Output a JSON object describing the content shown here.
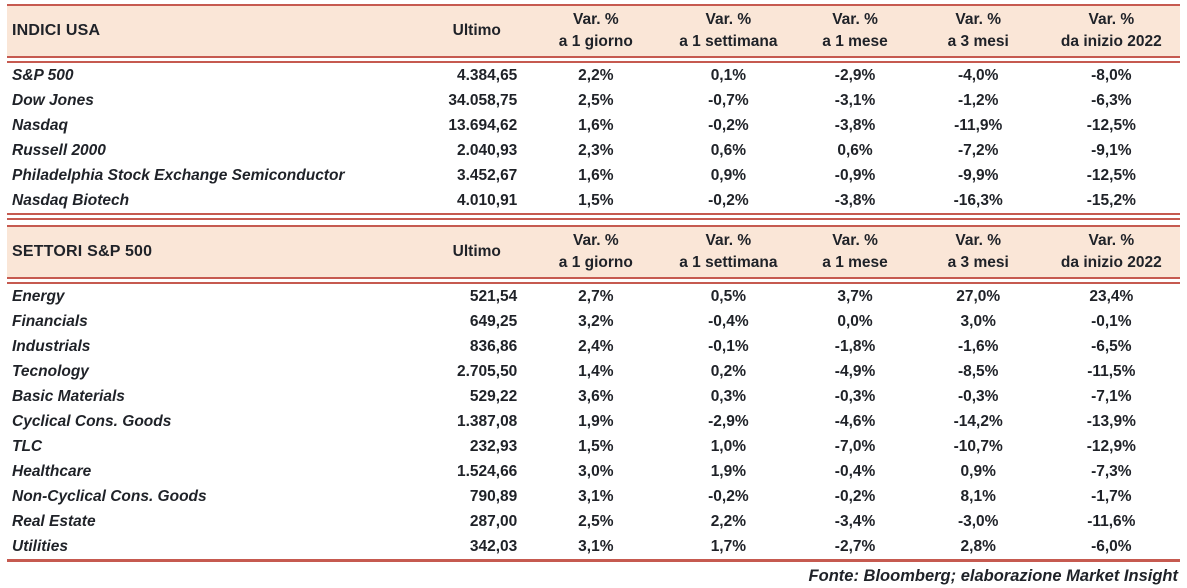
{
  "colors": {
    "accent_red": "#C65A50",
    "header_bg": "#FAE6D7",
    "text": "#1F2228"
  },
  "columns": {
    "ultimo": "Ultimo",
    "var_cols": [
      {
        "top": "Var. %",
        "bottom": "a 1 giorno"
      },
      {
        "top": "Var. %",
        "bottom": "a 1 settimana"
      },
      {
        "top": "Var. %",
        "bottom": "a 1 mese"
      },
      {
        "top": "Var. %",
        "bottom": "a 3 mesi"
      },
      {
        "top": "Var. %",
        "bottom": "da inizio 2022"
      }
    ]
  },
  "sections": [
    {
      "title": "INDICI USA",
      "rows": [
        {
          "name": "S&P 500",
          "ultimo": "4.384,65",
          "vars": [
            "2,2%",
            "0,1%",
            "-2,9%",
            "-4,0%",
            "-8,0%"
          ]
        },
        {
          "name": "Dow Jones",
          "ultimo": "34.058,75",
          "vars": [
            "2,5%",
            "-0,7%",
            "-3,1%",
            "-1,2%",
            "-6,3%"
          ]
        },
        {
          "name": "Nasdaq",
          "ultimo": "13.694,62",
          "vars": [
            "1,6%",
            "-0,2%",
            "-3,8%",
            "-11,9%",
            "-12,5%"
          ]
        },
        {
          "name": "Russell 2000",
          "ultimo": "2.040,93",
          "vars": [
            "2,3%",
            "0,6%",
            "0,6%",
            "-7,2%",
            "-9,1%"
          ]
        },
        {
          "name": "Philadelphia Stock Exchange Semiconductor",
          "ultimo": "3.452,67",
          "vars": [
            "1,6%",
            "0,9%",
            "-0,9%",
            "-9,9%",
            "-12,5%"
          ]
        },
        {
          "name": "Nasdaq Biotech",
          "ultimo": "4.010,91",
          "vars": [
            "1,5%",
            "-0,2%",
            "-3,8%",
            "-16,3%",
            "-15,2%"
          ]
        }
      ]
    },
    {
      "title": "SETTORI S&P 500",
      "rows": [
        {
          "name": "Energy",
          "ultimo": "521,54",
          "vars": [
            "2,7%",
            "0,5%",
            "3,7%",
            "27,0%",
            "23,4%"
          ]
        },
        {
          "name": "Financials",
          "ultimo": "649,25",
          "vars": [
            "3,2%",
            "-0,4%",
            "0,0%",
            "3,0%",
            "-0,1%"
          ]
        },
        {
          "name": "Industrials",
          "ultimo": "836,86",
          "vars": [
            "2,4%",
            "-0,1%",
            "-1,8%",
            "-1,6%",
            "-6,5%"
          ]
        },
        {
          "name": "Tecnology",
          "ultimo": "2.705,50",
          "vars": [
            "1,4%",
            "0,2%",
            "-4,9%",
            "-8,5%",
            "-11,5%"
          ]
        },
        {
          "name": "Basic Materials",
          "ultimo": "529,22",
          "vars": [
            "3,6%",
            "0,3%",
            "-0,3%",
            "-0,3%",
            "-7,1%"
          ]
        },
        {
          "name": "Cyclical Cons. Goods",
          "ultimo": "1.387,08",
          "vars": [
            "1,9%",
            "-2,9%",
            "-4,6%",
            "-14,2%",
            "-13,9%"
          ]
        },
        {
          "name": "TLC",
          "ultimo": "232,93",
          "vars": [
            "1,5%",
            "1,0%",
            "-7,0%",
            "-10,7%",
            "-12,9%"
          ]
        },
        {
          "name": "Healthcare",
          "ultimo": "1.524,66",
          "vars": [
            "3,0%",
            "1,9%",
            "-0,4%",
            "0,9%",
            "-7,3%"
          ]
        },
        {
          "name": "Non-Cyclical Cons. Goods",
          "ultimo": "790,89",
          "vars": [
            "3,1%",
            "-0,2%",
            "-0,2%",
            "8,1%",
            "-1,7%"
          ]
        },
        {
          "name": "Real Estate",
          "ultimo": "287,00",
          "vars": [
            "2,5%",
            "2,2%",
            "-3,4%",
            "-3,0%",
            "-11,6%"
          ]
        },
        {
          "name": "Utilities",
          "ultimo": "342,03",
          "vars": [
            "3,1%",
            "1,7%",
            "-2,7%",
            "2,8%",
            "-6,0%"
          ]
        }
      ]
    }
  ],
  "footer": "Fonte: Bloomberg; elaborazione Market Insight"
}
